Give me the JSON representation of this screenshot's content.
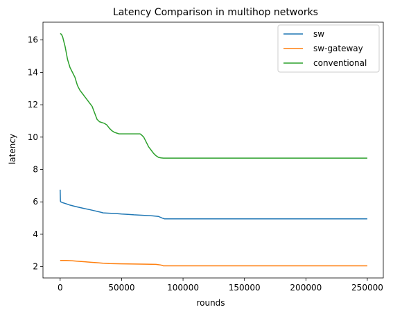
{
  "chart_data": {
    "type": "line",
    "title": "Latency Comparison in multihop networks",
    "xlabel": "rounds",
    "ylabel": "latency",
    "xlim": [
      -14000,
      263000
    ],
    "ylim": [
      1.3,
      17.1
    ],
    "xticks": [
      0,
      50000,
      100000,
      150000,
      200000,
      250000
    ],
    "yticks": [
      2,
      4,
      6,
      8,
      10,
      12,
      14,
      16
    ],
    "grid": false,
    "legend_position": "top-right",
    "series": [
      {
        "name": "sw",
        "color": "#1f77b4",
        "x": [
          0,
          200,
          500,
          2000,
          5000,
          8000,
          12000,
          16000,
          20000,
          24000,
          28000,
          32000,
          35000,
          40000,
          45000,
          50000,
          55000,
          60000,
          65000,
          70000,
          75000,
          80000,
          83000,
          85000,
          100000,
          150000,
          200000,
          250000
        ],
        "y": [
          6.75,
          6.05,
          6.0,
          5.95,
          5.88,
          5.8,
          5.72,
          5.65,
          5.58,
          5.52,
          5.45,
          5.38,
          5.32,
          5.3,
          5.28,
          5.25,
          5.23,
          5.2,
          5.18,
          5.16,
          5.14,
          5.1,
          5.0,
          4.95,
          4.95,
          4.95,
          4.95,
          4.95
        ]
      },
      {
        "name": "sw-gateway",
        "color": "#ff7f0e",
        "x": [
          0,
          5000,
          10000,
          15000,
          20000,
          25000,
          30000,
          35000,
          40000,
          50000,
          60000,
          70000,
          78000,
          82000,
          84000,
          100000,
          150000,
          200000,
          250000
        ],
        "y": [
          2.38,
          2.38,
          2.36,
          2.33,
          2.3,
          2.27,
          2.24,
          2.21,
          2.19,
          2.17,
          2.16,
          2.15,
          2.14,
          2.1,
          2.05,
          2.05,
          2.05,
          2.05,
          2.05
        ]
      },
      {
        "name": "conventional",
        "color": "#2ca02c",
        "x": [
          0,
          1000,
          2000,
          4000,
          6000,
          8000,
          10000,
          12000,
          14000,
          16000,
          18000,
          20000,
          22000,
          24000,
          26000,
          28000,
          30000,
          32000,
          34000,
          36000,
          38000,
          40000,
          42000,
          44000,
          46000,
          48000,
          50000,
          55000,
          60000,
          65000,
          66000,
          68000,
          70000,
          72000,
          74000,
          76000,
          78000,
          80000,
          82000,
          84000,
          100000,
          150000,
          200000,
          250000
        ],
        "y": [
          16.4,
          16.35,
          16.2,
          15.6,
          14.8,
          14.3,
          14.0,
          13.7,
          13.2,
          12.9,
          12.7,
          12.5,
          12.3,
          12.1,
          11.9,
          11.5,
          11.1,
          10.95,
          10.9,
          10.85,
          10.75,
          10.55,
          10.4,
          10.3,
          10.25,
          10.2,
          10.2,
          10.2,
          10.2,
          10.2,
          10.15,
          10.0,
          9.7,
          9.4,
          9.2,
          9.0,
          8.85,
          8.75,
          8.72,
          8.7,
          8.7,
          8.7,
          8.7,
          8.7
        ]
      }
    ]
  }
}
